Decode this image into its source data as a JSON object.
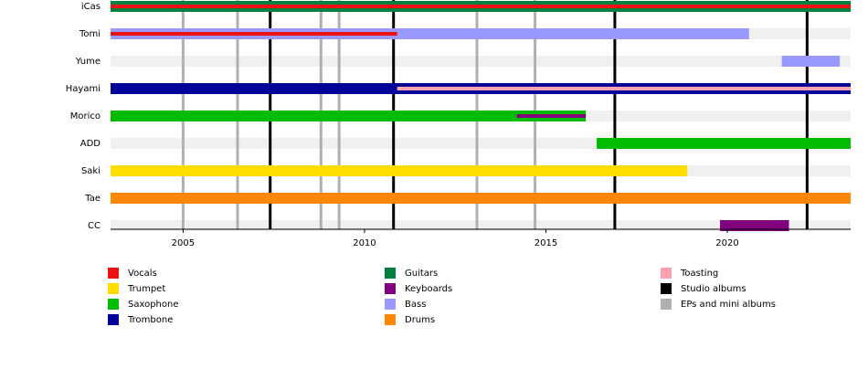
{
  "chart_data": {
    "type": "timeline",
    "categories": [
      "iCas",
      "Tomi",
      "Yume",
      "Hayami",
      "Morico",
      "ADD",
      "Saki",
      "Tae",
      "CC"
    ],
    "xlim": [
      2003,
      2023.4
    ],
    "xticks": [
      2005,
      2010,
      2015,
      2020
    ],
    "series": [
      {
        "name": "Vocals",
        "color": "#ee1111",
        "bars": [
          {
            "row": "iCas",
            "start": 2003,
            "end": 2023.4
          },
          {
            "row": "Tomi",
            "start": 2003,
            "end": 2010.9
          }
        ]
      },
      {
        "name": "Trumpet",
        "color": "#ffdd00",
        "bars": [
          {
            "row": "Saki",
            "start": 2003,
            "end": 2018.9
          }
        ]
      },
      {
        "name": "Saxophone",
        "color": "#00bb00",
        "bars": [
          {
            "row": "Morico",
            "start": 2003,
            "end": 2016.1
          },
          {
            "row": "ADD",
            "start": 2016.4,
            "end": 2023.4
          }
        ]
      },
      {
        "name": "Trombone",
        "color": "#000099",
        "bars": [
          {
            "row": "Hayami",
            "start": 2003,
            "end": 2023.4
          }
        ]
      },
      {
        "name": "Guitars",
        "color": "#008040",
        "bars": [
          {
            "row": "iCas",
            "start": 2003,
            "end": 2023.4
          }
        ]
      },
      {
        "name": "Keyboards",
        "color": "#800080",
        "bars": [
          {
            "row": "Morico",
            "start": 2014.2,
            "end": 2016.1
          },
          {
            "row": "CC",
            "start": 2019.8,
            "end": 2021.7
          }
        ]
      },
      {
        "name": "Bass",
        "color": "#9999ff",
        "bars": [
          {
            "row": "Tomi",
            "start": 2003,
            "end": 2020.6
          },
          {
            "row": "Yume",
            "start": 2021.5,
            "end": 2023.1
          }
        ]
      },
      {
        "name": "Drums",
        "color": "#ff8800",
        "bars": [
          {
            "row": "Tae",
            "start": 2003,
            "end": 2023.4
          }
        ]
      },
      {
        "name": "Toasting",
        "color": "#ffa0b0",
        "bars": [
          {
            "row": "Hayami",
            "start": 2010.9,
            "end": 2023.4
          }
        ]
      },
      {
        "name": "Studio albums",
        "color": "#000000",
        "lines": [
          2007.4,
          2010.8,
          2016.9,
          2022.2
        ]
      },
      {
        "name": "EPs and mini albums",
        "color": "#b0b0b0",
        "lines": [
          2005.0,
          2006.5,
          2008.8,
          2009.3,
          2013.1,
          2014.7
        ]
      }
    ]
  }
}
